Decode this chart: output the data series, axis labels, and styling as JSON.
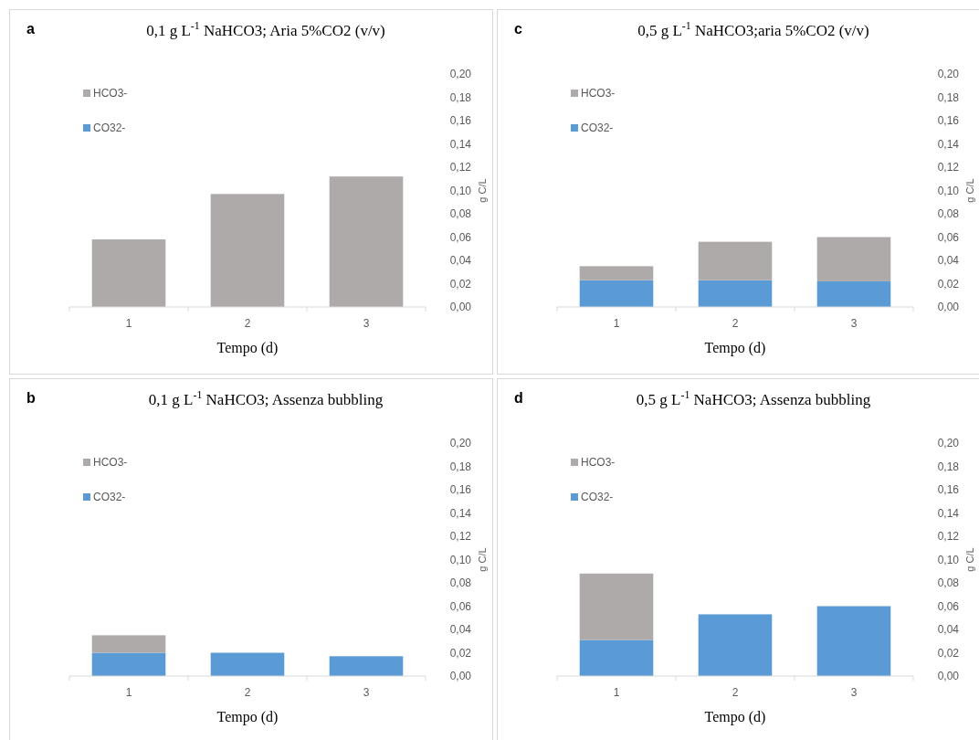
{
  "chart_data": [
    {
      "type": "bar",
      "title": "0,1 g L$^{-1}$ NaHCO3; Aria 5%CO2 (v/v)",
      "annotations": [
        "a"
      ],
      "xlabel": "Tempo (d)",
      "categories": [
        "1",
        "2",
        "3"
      ],
      "stacked": true,
      "legend": "top left",
      "ylabel": "g C/L",
      "ylim": [
        0,
        0.2
      ],
      "yticks": [
        {
          "value": 0,
          "label": "0,00"
        },
        {
          "value": 0.02,
          "label": "0,02"
        },
        {
          "value": 0.04,
          "label": "0,04"
        },
        {
          "value": 0.06,
          "label": "0,06"
        },
        {
          "value": 0.08,
          "label": "0,08"
        },
        {
          "value": 0.1,
          "label": "0,10"
        },
        {
          "value": 0.12,
          "label": "0,12"
        },
        {
          "value": 0.14,
          "label": "0,14"
        },
        {
          "value": 0.16,
          "label": "0,16"
        },
        {
          "value": 0.18,
          "label": "0,18"
        },
        {
          "value": 0.2,
          "label": "0,20"
        }
      ],
      "series": [
        {
          "name": "CO32-",
          "color": "#5b9bd5",
          "values": [
            0,
            0,
            0
          ]
        },
        {
          "name": "HCO3-",
          "color": "#aeaaaa",
          "values": [
            0.058,
            0.097,
            0.112
          ]
        }
      ]
    },
    {
      "type": "bar",
      "title": "0,5 g L$^{-1}$  NaHCO3;aria 5%CO2 (v/v)",
      "annotations": [
        "c"
      ],
      "xlabel": "Tempo (d)",
      "categories": [
        "1",
        "2",
        "3"
      ],
      "stacked": true,
      "legend": "top left",
      "ylabel": "g C/L",
      "ylim": [
        0,
        0.2
      ],
      "yticks": [
        {
          "value": 0,
          "label": "0,00"
        },
        {
          "value": 0.02,
          "label": "0,02"
        },
        {
          "value": 0.04,
          "label": "0,04"
        },
        {
          "value": 0.06,
          "label": "0,06"
        },
        {
          "value": 0.08,
          "label": "0,08"
        },
        {
          "value": 0.1,
          "label": "0,10"
        },
        {
          "value": 0.12,
          "label": "0,12"
        },
        {
          "value": 0.14,
          "label": "0,14"
        },
        {
          "value": 0.16,
          "label": "0,16"
        },
        {
          "value": 0.18,
          "label": "0,18"
        },
        {
          "value": 0.2,
          "label": "0,20"
        }
      ],
      "series": [
        {
          "name": "CO32-",
          "color": "#5b9bd5",
          "values": [
            0.023,
            0.023,
            0.022
          ]
        },
        {
          "name": "HCO3-",
          "color": "#aeaaaa",
          "values": [
            0.012,
            0.033,
            0.038
          ]
        }
      ]
    },
    {
      "type": "bar",
      "title": "0,1 g L$^{-1}$ NaHCO3; Assenza bubbling",
      "annotations": [
        "b"
      ],
      "xlabel": "Tempo (d)",
      "categories": [
        "1",
        "2",
        "3"
      ],
      "stacked": true,
      "legend": "top left",
      "ylabel": "g C/L",
      "ylim": [
        0,
        0.2
      ],
      "yticks": [
        {
          "value": 0,
          "label": "0,00"
        },
        {
          "value": 0.02,
          "label": "0,02"
        },
        {
          "value": 0.04,
          "label": "0,04"
        },
        {
          "value": 0.06,
          "label": "0,06"
        },
        {
          "value": 0.08,
          "label": "0,08"
        },
        {
          "value": 0.1,
          "label": "0,10"
        },
        {
          "value": 0.12,
          "label": "0,12"
        },
        {
          "value": 0.14,
          "label": "0,14"
        },
        {
          "value": 0.16,
          "label": "0,16"
        },
        {
          "value": 0.18,
          "label": "0,18"
        },
        {
          "value": 0.2,
          "label": "0,20"
        }
      ],
      "series": [
        {
          "name": "CO32-",
          "color": "#5b9bd5",
          "values": [
            0.02,
            0.02,
            0.017
          ]
        },
        {
          "name": "HCO3-",
          "color": "#aeaaaa",
          "values": [
            0.015,
            0,
            0
          ]
        }
      ]
    },
    {
      "type": "bar",
      "title": "0,5 g L$^{-1}$  NaHCO3; Assenza bubbling",
      "annotations": [
        "d"
      ],
      "xlabel": "Tempo (d)",
      "categories": [
        "1",
        "2",
        "3"
      ],
      "stacked": true,
      "legend": "top left",
      "ylabel": "g C/L",
      "ylim": [
        0,
        0.2
      ],
      "yticks": [
        {
          "value": 0,
          "label": "0,00"
        },
        {
          "value": 0.02,
          "label": "0,02"
        },
        {
          "value": 0.04,
          "label": "0,04"
        },
        {
          "value": 0.06,
          "label": "0,06"
        },
        {
          "value": 0.08,
          "label": "0,08"
        },
        {
          "value": 0.1,
          "label": "0,10"
        },
        {
          "value": 0.12,
          "label": "0,12"
        },
        {
          "value": 0.14,
          "label": "0,14"
        },
        {
          "value": 0.16,
          "label": "0,16"
        },
        {
          "value": 0.18,
          "label": "0,18"
        },
        {
          "value": 0.2,
          "label": "0,20"
        }
      ],
      "series": [
        {
          "name": "CO32-",
          "color": "#5b9bd5",
          "values": [
            0.031,
            0.053,
            0.06
          ]
        },
        {
          "name": "HCO3-",
          "color": "#aeaaaa",
          "values": [
            0.057,
            0,
            0
          ]
        }
      ]
    }
  ]
}
